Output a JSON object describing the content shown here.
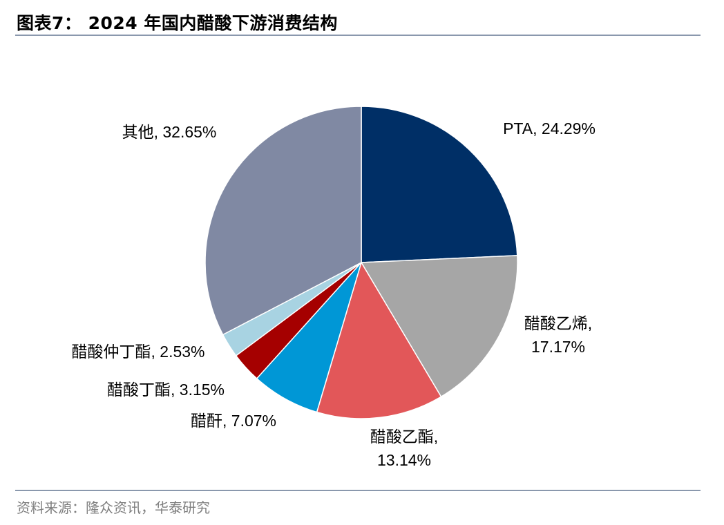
{
  "header": {
    "title": "图表7： 2024 年国内醋酸下游消费结构"
  },
  "footer": {
    "source": "资料来源：隆众资讯，华泰研究"
  },
  "chart_data": {
    "type": "pie",
    "title": "2024 年国内醋酸下游消费结构",
    "start": "12 o'clock, clockwise",
    "slices": [
      {
        "name": "PTA",
        "value": 24.29,
        "pct": "24.29%",
        "color": "#002f66",
        "label_lines": [
          "PTA, 24.29%"
        ]
      },
      {
        "name": "醋酸乙烯",
        "value": 17.17,
        "pct": "17.17%",
        "color": "#a6a6a6",
        "label_lines": [
          "醋酸乙烯,",
          "17.17%"
        ]
      },
      {
        "name": "醋酸乙酯",
        "value": 13.14,
        "pct": "13.14%",
        "color": "#e25759",
        "label_lines": [
          "醋酸乙酯,",
          "13.14%"
        ]
      },
      {
        "name": "醋酐",
        "value": 7.07,
        "pct": "7.07%",
        "color": "#0097d6",
        "label_lines": [
          "醋酐, 7.07%"
        ]
      },
      {
        "name": "醋酸丁酯",
        "value": 3.15,
        "pct": "3.15%",
        "color": "#a50000",
        "label_lines": [
          "醋酸丁酯, 3.15%"
        ]
      },
      {
        "name": "醋酸仲丁酯",
        "value": 2.53,
        "pct": "2.53%",
        "color": "#a8d3e2",
        "label_lines": [
          "醋酸仲丁酯, 2.53%"
        ]
      },
      {
        "name": "其他",
        "value": 32.65,
        "pct": "32.65%",
        "color": "#8089a3",
        "label_lines": [
          "其他, 32.65%"
        ]
      }
    ]
  }
}
